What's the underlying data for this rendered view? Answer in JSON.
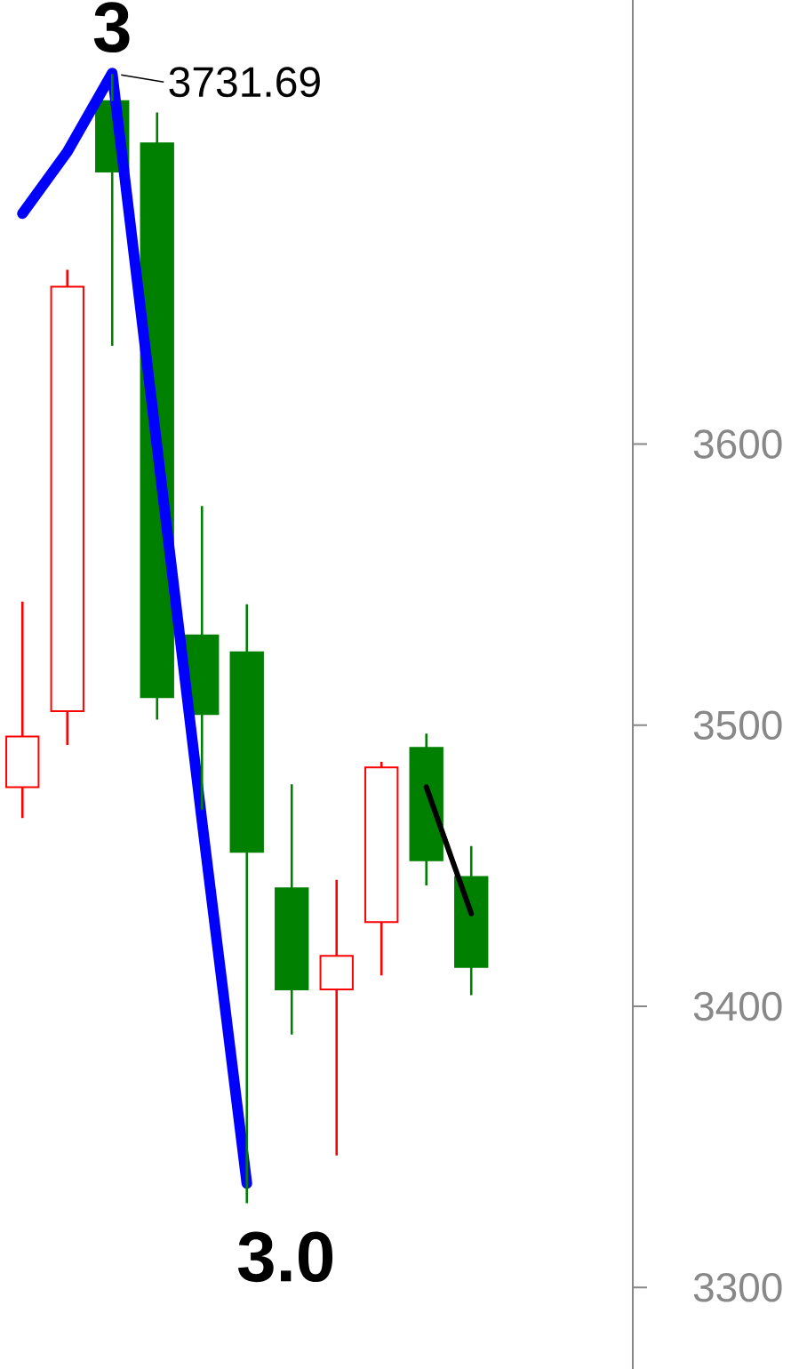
{
  "chart_data": {
    "type": "candlestick",
    "categories": [
      null,
      null,
      null,
      null,
      null,
      null,
      null,
      null,
      null,
      null,
      null
    ],
    "ohlc": [
      [
        3478,
        3544,
        3467,
        3496
      ],
      [
        3505,
        3662,
        3493,
        3656
      ],
      [
        3722,
        3731.69,
        3635,
        3697
      ],
      [
        3707,
        3718,
        3502,
        3510
      ],
      [
        3532,
        3578,
        3470,
        3504
      ],
      [
        3526,
        3543,
        3330,
        3455
      ],
      [
        3442,
        3479,
        3390,
        3406
      ],
      [
        3406,
        3445,
        3347,
        3418
      ],
      [
        3430,
        3487,
        3411,
        3485
      ],
      [
        3492,
        3497,
        3443,
        3452
      ],
      [
        3446,
        3457,
        3404,
        3414
      ]
    ],
    "colors": [
      "#ff0000",
      "#ff0000",
      "#008000",
      "#008000",
      "#008000",
      "#008000",
      "#008000",
      "#ff0000",
      "#ff0000",
      "#008000",
      "#008000"
    ],
    "series": [
      {
        "type": "line",
        "color": "#0000ff",
        "values": [
          3682,
          3704,
          3732,
          3599,
          3466,
          3337,
          null,
          null,
          null,
          null,
          null
        ]
      },
      {
        "type": "line",
        "color": "#000000",
        "values": [
          null,
          null,
          null,
          null,
          null,
          null,
          null,
          null,
          null,
          3478,
          3433
        ]
      }
    ],
    "ylim": [
      3271,
      3758
    ],
    "yticks": [
      3300,
      3400,
      3500,
      3600
    ],
    "annotations": [
      "3",
      "3731.69",
      "3.0"
    ]
  }
}
